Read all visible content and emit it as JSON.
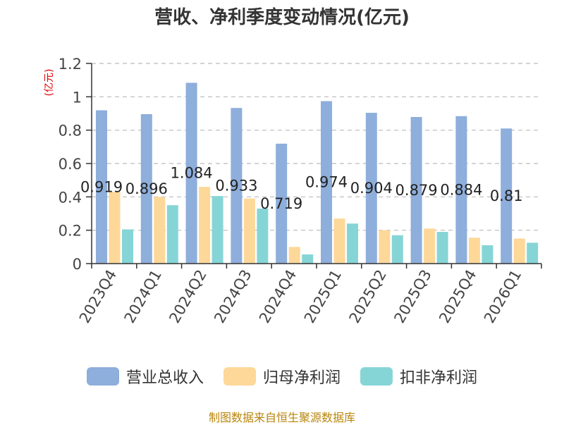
{
  "chart_data": {
    "type": "bar",
    "title": "营收、净利季度变动情况(亿元)",
    "unit_label": "(亿元)",
    "ylim": [
      0,
      1.2
    ],
    "yticks": [
      "0",
      "0.2",
      "0.4",
      "0.6",
      "0.8",
      "1",
      "1.2"
    ],
    "grid": true,
    "legend_position": "bottom",
    "categories": [
      "2023Q4",
      "2024Q1",
      "2024Q2",
      "2024Q3",
      "2024Q4",
      "2025Q1",
      "2025Q2",
      "2025Q3",
      "2025Q4",
      "2026Q1"
    ],
    "series": [
      {
        "name": "营业总收入",
        "color": "#8eaedb",
        "values": [
          0.919,
          0.896,
          1.084,
          0.933,
          0.719,
          0.974,
          0.904,
          0.879,
          0.884,
          0.81
        ],
        "labels": [
          "0.919",
          "0.896",
          "1.084",
          "0.933",
          "0.719",
          "0.974",
          "0.904",
          "0.879",
          "0.884",
          "0.81"
        ]
      },
      {
        "name": "归母净利润",
        "color": "#fdd899",
        "values": [
          0.43,
          0.4,
          0.46,
          0.39,
          0.1,
          0.27,
          0.2,
          0.21,
          0.155,
          0.15
        ]
      },
      {
        "name": "扣非净利润",
        "color": "#86d5d6",
        "values": [
          0.205,
          0.35,
          0.405,
          0.33,
          0.055,
          0.24,
          0.17,
          0.19,
          0.11,
          0.125
        ]
      }
    ]
  },
  "source": "制图数据来自恒生聚源数据库"
}
